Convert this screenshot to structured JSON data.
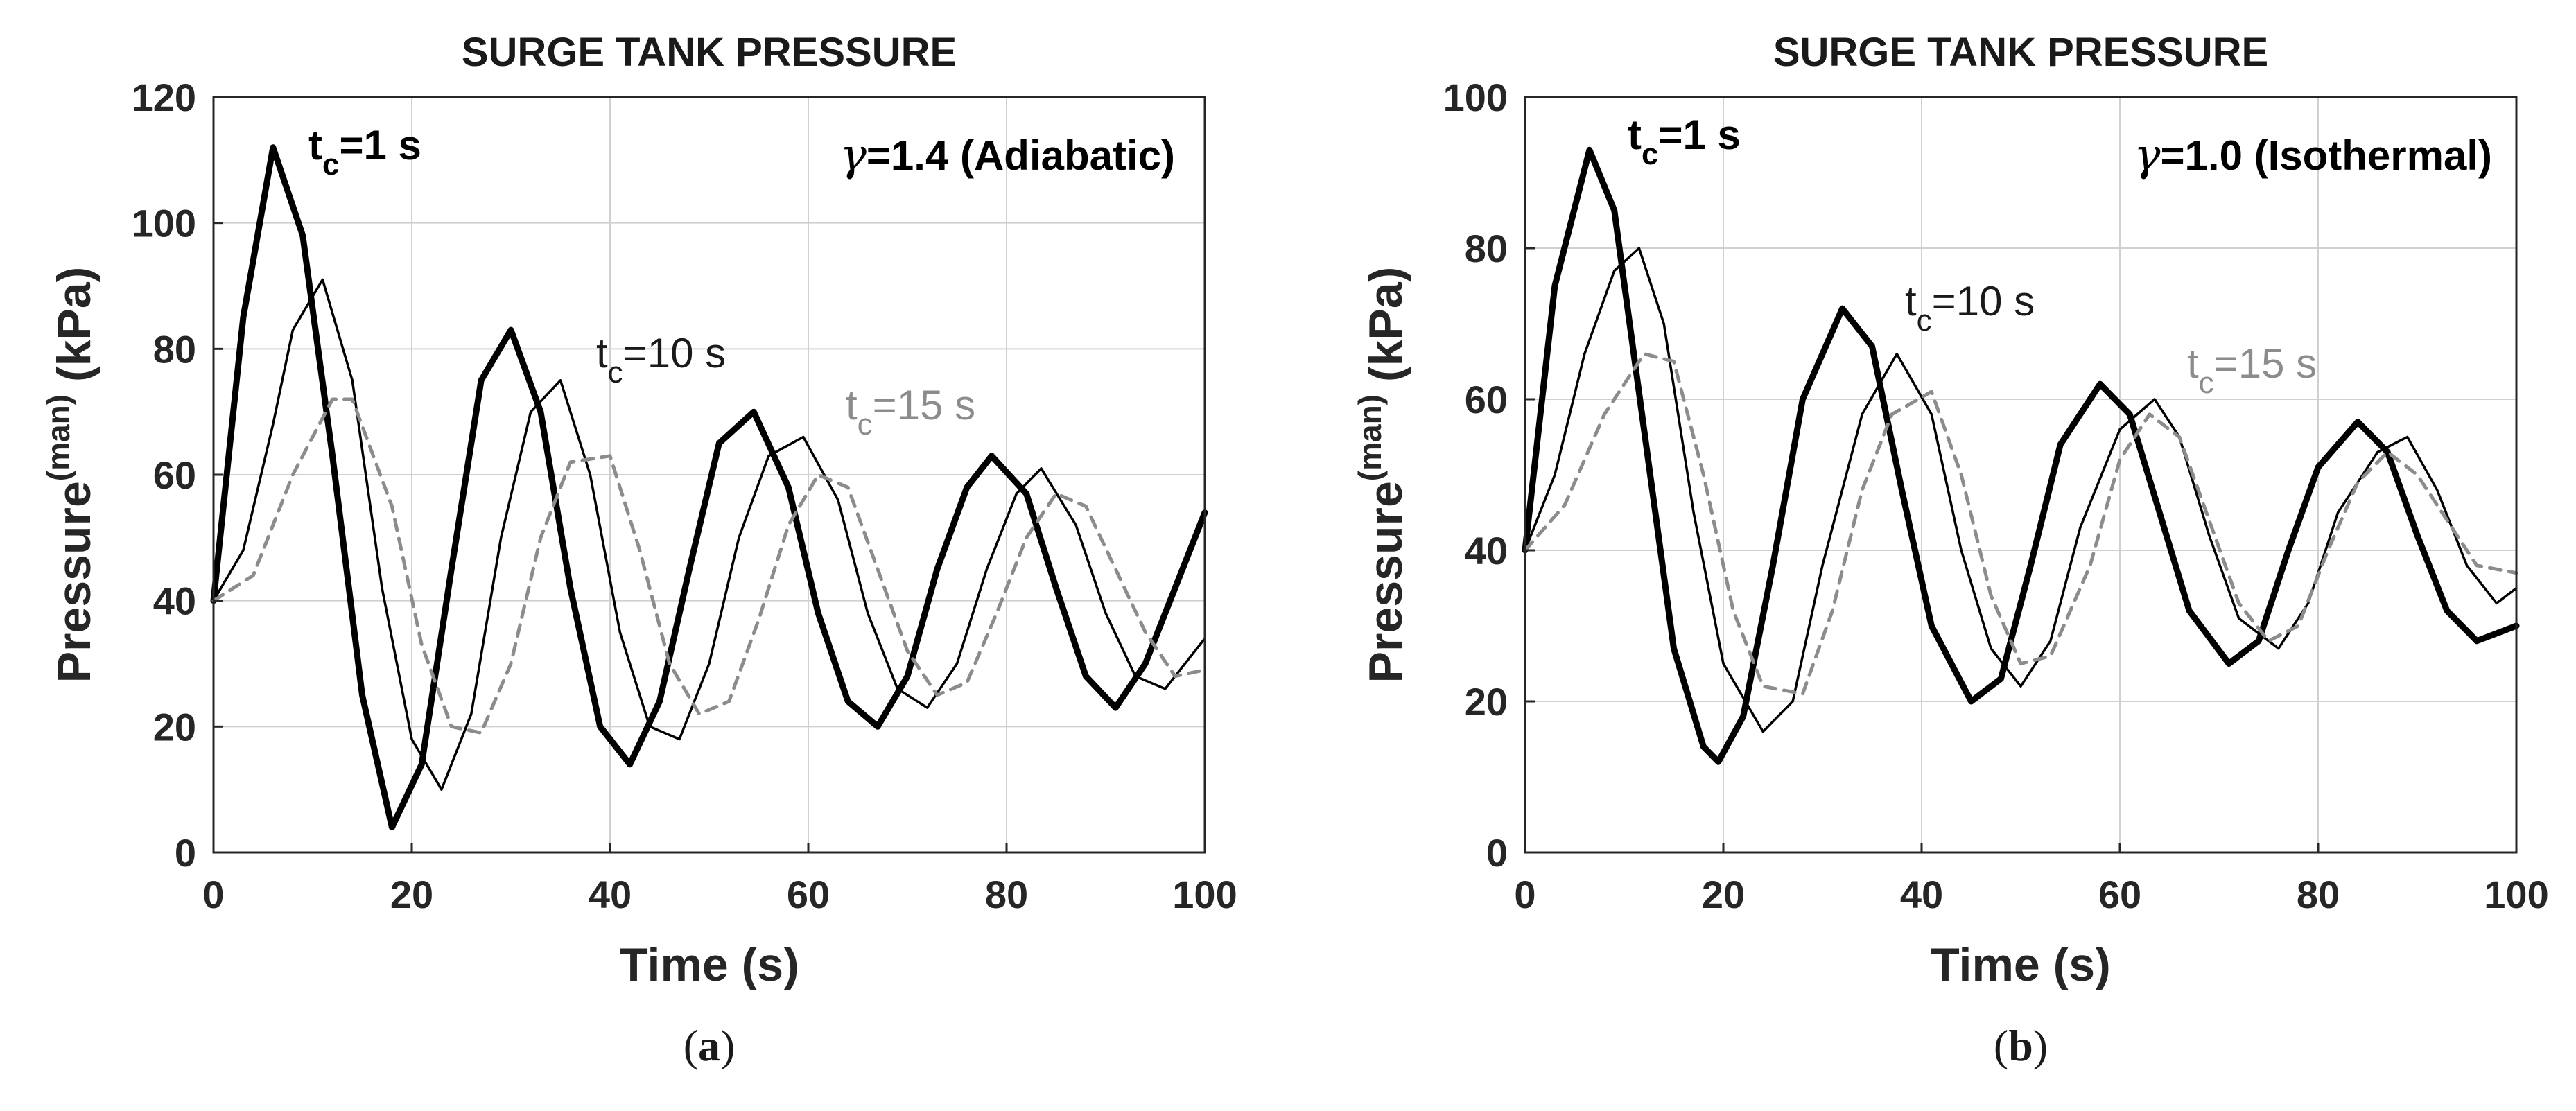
{
  "chart_data": [
    {
      "type": "line",
      "panel_label": "(a)",
      "subcaption": "a",
      "title": "SURGE TANK PRESSURE",
      "xlabel": "Time (s)",
      "ylabel_main": "Pressure",
      "ylabel_sup": "(man)",
      "ylabel_unit": "(kPa)",
      "xlim": [
        0,
        100
      ],
      "ylim": [
        0,
        120
      ],
      "xticks": [
        0,
        20,
        40,
        60,
        80,
        100
      ],
      "yticks": [
        0,
        20,
        40,
        60,
        80,
        100,
        120
      ],
      "grid": true,
      "gamma_label": {
        "symbol": "γ",
        "text": "=1.4 (Adiabatic)"
      },
      "series": [
        {
          "name": "tc=1 s",
          "label_main": "t",
          "label_sub": "c",
          "label_rest": "=1 s",
          "style": "thick",
          "color": "#000000",
          "x": [
            0,
            3,
            6,
            9,
            12,
            15,
            18,
            21,
            24,
            27,
            30,
            33,
            36,
            39,
            42,
            45,
            48,
            51,
            54.5,
            58,
            61,
            64,
            67,
            70,
            73,
            76,
            78.5,
            82,
            85,
            88,
            91,
            94,
            97,
            100
          ],
          "y": [
            40,
            85,
            112,
            98,
            63,
            25,
            4,
            14,
            45,
            75,
            83,
            70,
            42,
            20,
            14,
            24,
            45,
            65,
            70,
            58,
            38,
            24,
            20,
            28,
            45,
            58,
            63,
            57,
            42,
            28,
            23,
            30,
            42,
            54
          ]
        },
        {
          "name": "tc=10 s",
          "label_main": "t",
          "label_sub": "c",
          "label_rest": "=10 s",
          "style": "thin",
          "color": "#000000",
          "x": [
            0,
            3,
            6,
            8,
            11,
            14,
            17,
            20,
            23,
            26,
            29,
            32,
            35,
            38,
            41,
            44,
            47,
            50,
            53,
            56,
            59.5,
            63,
            66,
            69,
            72,
            75,
            78,
            81,
            83.5,
            87,
            90,
            93,
            96,
            100
          ],
          "y": [
            40,
            48,
            68,
            83,
            91,
            75,
            42,
            18,
            10,
            22,
            50,
            70,
            75,
            60,
            35,
            20,
            18,
            30,
            50,
            63,
            66,
            56,
            38,
            26,
            23,
            30,
            45,
            57,
            61,
            52,
            38,
            28,
            26,
            34
          ]
        },
        {
          "name": "tc=15 s",
          "label_main": "t",
          "label_sub": "c",
          "label_rest": "=15 s",
          "style": "dashed",
          "color": "#8c8c8c",
          "x": [
            0,
            4,
            8,
            12,
            14,
            18,
            21,
            24,
            27,
            30,
            33,
            36,
            40,
            43,
            46,
            49,
            52,
            55,
            58,
            61,
            64,
            67,
            70,
            73,
            76,
            79,
            82,
            85,
            88,
            91,
            94,
            97,
            100
          ],
          "y": [
            40,
            44,
            60,
            72,
            72,
            55,
            33,
            20,
            19,
            30,
            50,
            62,
            63,
            48,
            30,
            22,
            24,
            37,
            52,
            60,
            58,
            45,
            32,
            25,
            27,
            38,
            50,
            57,
            55,
            45,
            35,
            28,
            29
          ]
        }
      ]
    },
    {
      "type": "line",
      "panel_label": "(b)",
      "subcaption": "b",
      "title": "SURGE TANK PRESSURE",
      "xlabel": "Time (s)",
      "ylabel_main": "Pressure",
      "ylabel_sup": "(man)",
      "ylabel_unit": "(kPa)",
      "xlim": [
        0,
        100
      ],
      "ylim": [
        0,
        100
      ],
      "xticks": [
        0,
        20,
        40,
        60,
        80,
        100
      ],
      "yticks": [
        0,
        20,
        40,
        60,
        80,
        100
      ],
      "grid": true,
      "gamma_label": {
        "symbol": "γ",
        "text": "=1.0 (Isothermal)"
      },
      "series": [
        {
          "name": "tc=1 s",
          "label_main": "t",
          "label_sub": "c",
          "label_rest": "=1 s",
          "style": "thick",
          "color": "#000000",
          "x": [
            0,
            3,
            6.5,
            9,
            12,
            15,
            18,
            19.5,
            22,
            25,
            28,
            32,
            35,
            38,
            41,
            45,
            48,
            51,
            54,
            58,
            61,
            64,
            67,
            71,
            74,
            77,
            80,
            84,
            87,
            90,
            93,
            96,
            100
          ],
          "y": [
            40,
            75,
            93,
            85,
            56,
            27,
            14,
            12,
            18,
            38,
            60,
            72,
            67,
            48,
            30,
            20,
            23,
            38,
            54,
            62,
            58,
            45,
            32,
            25,
            28,
            40,
            51,
            57,
            53,
            42,
            32,
            28,
            30
          ]
        },
        {
          "name": "tc=10 s",
          "label_main": "t",
          "label_sub": "c",
          "label_rest": "=10 s",
          "style": "thin",
          "color": "#000000",
          "x": [
            0,
            3,
            6,
            9,
            11.5,
            14,
            17,
            20,
            24,
            27,
            30,
            34,
            37.5,
            41,
            44,
            47,
            50,
            53,
            56,
            60,
            63.5,
            66,
            69,
            72,
            76,
            79,
            82,
            86,
            89,
            92,
            95,
            98,
            100
          ],
          "y": [
            40,
            50,
            66,
            77,
            80,
            70,
            45,
            25,
            16,
            20,
            38,
            58,
            66,
            58,
            40,
            27,
            22,
            28,
            43,
            56,
            60,
            55,
            42,
            31,
            27,
            33,
            45,
            53,
            55,
            48,
            38,
            33,
            35
          ]
        },
        {
          "name": "tc=15 s",
          "label_main": "t",
          "label_sub": "c",
          "label_rest": "=15 s",
          "style": "dashed",
          "color": "#8c8c8c",
          "x": [
            0,
            4,
            8,
            12,
            15,
            18,
            21,
            24,
            28,
            31,
            34,
            37,
            41,
            44,
            47,
            50,
            53,
            57,
            60,
            63,
            66,
            69,
            72,
            75,
            78,
            81,
            84,
            87,
            90,
            93,
            96,
            100
          ],
          "y": [
            40,
            46,
            58,
            66,
            65,
            50,
            32,
            22,
            21,
            32,
            48,
            58,
            61,
            50,
            34,
            25,
            26,
            38,
            52,
            58,
            55,
            44,
            33,
            28,
            30,
            40,
            49,
            53,
            50,
            44,
            38,
            37
          ]
        }
      ]
    }
  ]
}
